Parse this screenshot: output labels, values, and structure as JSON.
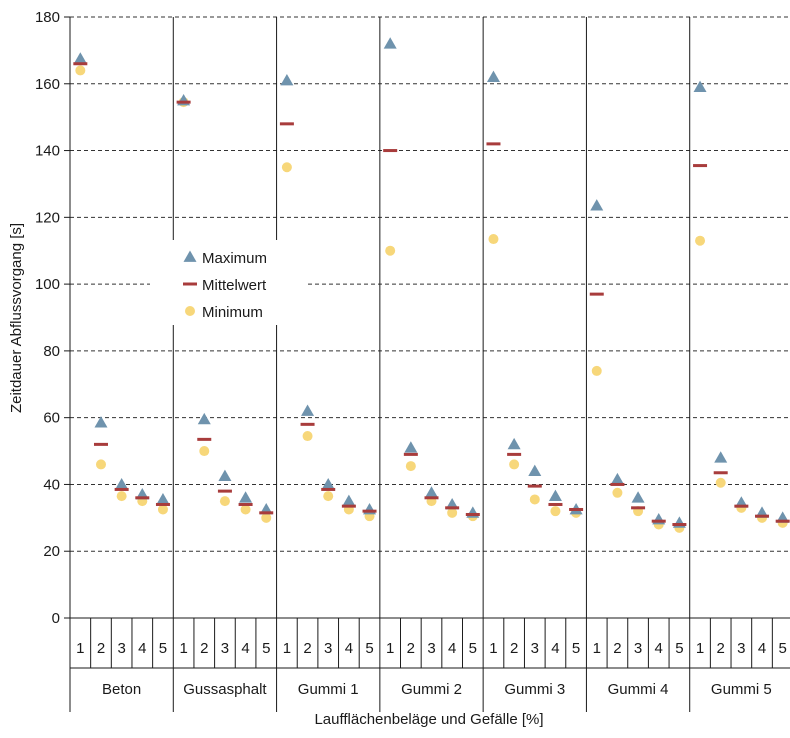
{
  "chart_data": {
    "type": "scatter",
    "ylabel": "Zeitdauer Abflussvorgang [s]",
    "xlabel": "Laufflächenbeläge und Gefälle [%]",
    "ylim": [
      0,
      180
    ],
    "yticks": [
      0,
      20,
      40,
      60,
      80,
      100,
      120,
      140,
      160,
      180
    ],
    "grid": "horizontal dashed",
    "legend_position": "left, upper-middle",
    "groups": [
      "Beton",
      "Gussasphalt",
      "Gummi 1",
      "Gummi 2",
      "Gummi 3",
      "Gummi 4",
      "Gummi 5"
    ],
    "categories": [
      "1",
      "2",
      "3",
      "4",
      "5"
    ],
    "series": [
      {
        "name": "Maximum",
        "marker": "triangle",
        "color": "#6f93ad",
        "values": [
          [
            167.5,
            58.5,
            40,
            37,
            35.5
          ],
          [
            155,
            59.5,
            42.5,
            36,
            32.5
          ],
          [
            161,
            62,
            40,
            35,
            32.5
          ],
          [
            172,
            51,
            37.5,
            34,
            31.5
          ],
          [
            162,
            52,
            44,
            36.5,
            32.5
          ],
          [
            123.5,
            41.5,
            36,
            29.5,
            28.5
          ],
          [
            159,
            48,
            34.5,
            31.5,
            30
          ]
        ]
      },
      {
        "name": "Mittelwert",
        "marker": "dash",
        "color": "#a83c3c",
        "values": [
          [
            166,
            52,
            38.5,
            36,
            34
          ],
          [
            154.5,
            53.5,
            38,
            34,
            31.5
          ],
          [
            148,
            58,
            38.5,
            33.5,
            32
          ],
          [
            140,
            49,
            36,
            33,
            31
          ],
          [
            142,
            49,
            39.5,
            34,
            32.5
          ],
          [
            97,
            40,
            33,
            29,
            28
          ],
          [
            135.5,
            43.5,
            33.5,
            30.5,
            29
          ]
        ]
      },
      {
        "name": "Minimum",
        "marker": "circle",
        "color": "#f7d77a",
        "values": [
          [
            164,
            46,
            36.5,
            35,
            32.5
          ],
          [
            154.5,
            50,
            35,
            32.5,
            30
          ],
          [
            135,
            54.5,
            36.5,
            32.5,
            30.5
          ],
          [
            110,
            45.5,
            35,
            31.5,
            30.5
          ],
          [
            113.5,
            46,
            35.5,
            32,
            31.5
          ],
          [
            74,
            37.5,
            32,
            28,
            27
          ],
          [
            113,
            40.5,
            33,
            30,
            28.5
          ]
        ]
      }
    ]
  }
}
